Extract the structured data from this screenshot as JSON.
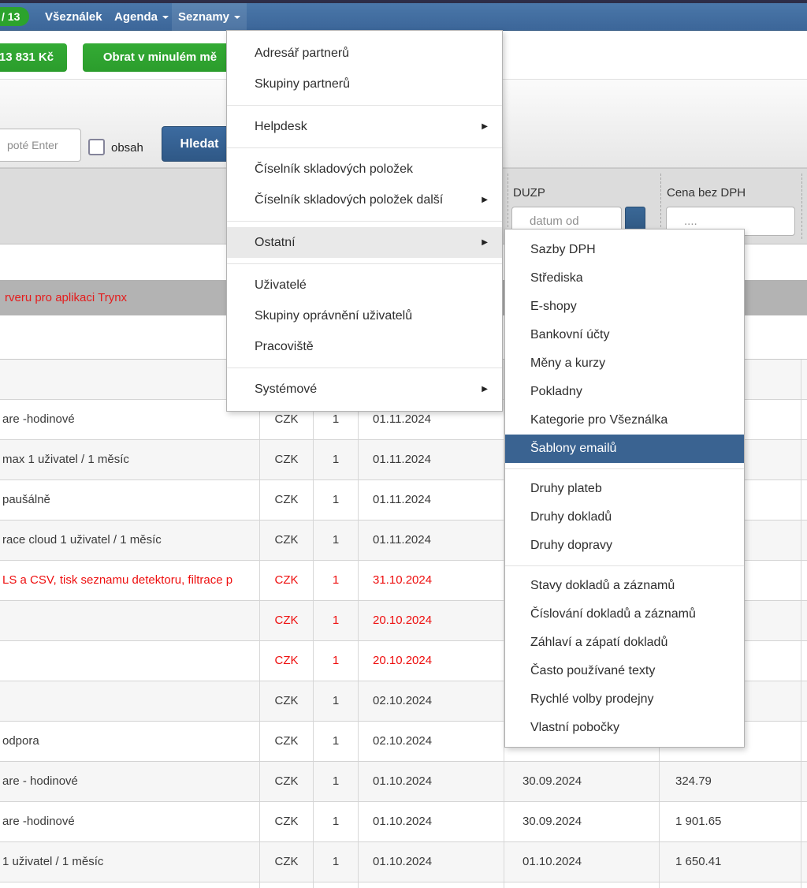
{
  "navbar": {
    "badge": "/ 13",
    "items": [
      {
        "label": "Všeználek",
        "caret": false,
        "open": false
      },
      {
        "label": "Agenda",
        "caret": true,
        "open": false
      },
      {
        "label": "Seznamy",
        "caret": true,
        "open": true
      }
    ]
  },
  "toolbar": {
    "buttons": [
      {
        "label": "13 831 Kč"
      },
      {
        "label": "Obrat v minulém mě"
      }
    ]
  },
  "search": {
    "placeholder": "poté Enter",
    "checkbox_label": "obsah",
    "checkbox_checked": false,
    "submit_label": "Hledat"
  },
  "filter_row": {
    "duzp": {
      "label": "DUZP",
      "placeholder": "datum od"
    },
    "price": {
      "label": "Cena bez DPH",
      "placeholder": "...."
    }
  },
  "notice_row": {
    "text": "rveru pro aplikaci Trynx"
  },
  "menu": {
    "sections": [
      {
        "items": [
          {
            "label": "Adresář partnerů"
          },
          {
            "label": "Skupiny partnerů"
          }
        ]
      },
      {
        "items": [
          {
            "label": "Helpdesk",
            "submenu": true
          }
        ]
      },
      {
        "items": [
          {
            "label": "Číselník skladových položek"
          },
          {
            "label": "Číselník skladových položek další",
            "submenu": true
          }
        ]
      },
      {
        "items": [
          {
            "label": "Ostatní",
            "submenu": true,
            "hover": true
          }
        ]
      },
      {
        "items": [
          {
            "label": "Uživatelé"
          },
          {
            "label": "Skupiny oprávnění uživatelů"
          },
          {
            "label": "Pracoviště"
          }
        ]
      },
      {
        "items": [
          {
            "label": "Systémové",
            "submenu": true
          }
        ]
      }
    ]
  },
  "submenu": {
    "sections": [
      {
        "items": [
          {
            "label": "Sazby DPH"
          },
          {
            "label": "Střediska"
          },
          {
            "label": "E-shopy"
          },
          {
            "label": "Bankovní účty"
          },
          {
            "label": "Měny a kurzy"
          },
          {
            "label": "Pokladny"
          },
          {
            "label": "Kategorie pro Všeználka"
          },
          {
            "label": "Šablony emailů",
            "selected": true
          }
        ]
      },
      {
        "items": [
          {
            "label": "Druhy plateb"
          },
          {
            "label": "Druhy dokladů"
          },
          {
            "label": "Druhy dopravy"
          }
        ]
      },
      {
        "items": [
          {
            "label": "Stavy dokladů a záznamů"
          },
          {
            "label": "Číslování dokladů a záznamů"
          },
          {
            "label": "Záhlaví a zápatí dokladů"
          },
          {
            "label": "Často používané texty"
          },
          {
            "label": "Rychlé volby prodejny"
          },
          {
            "label": "Vlastní pobočky"
          }
        ]
      }
    ]
  },
  "table": {
    "rows": [
      {
        "name": "",
        "currency": "",
        "qty": "",
        "date": "",
        "duzp": "",
        "price": "",
        "red": false
      },
      {
        "name": "are -hodinové",
        "currency": "CZK",
        "qty": "1",
        "date": "01.11.2024",
        "duzp": "",
        "price": "",
        "red": false
      },
      {
        "name": "max 1 uživatel / 1 měsíc",
        "currency": "CZK",
        "qty": "1",
        "date": "01.11.2024",
        "duzp": "",
        "price": "",
        "red": false
      },
      {
        "name": "paušálně",
        "currency": "CZK",
        "qty": "1",
        "date": "01.11.2024",
        "duzp": "",
        "price": "",
        "red": false
      },
      {
        "name": "race cloud 1 uživatel / 1 měsíc",
        "currency": "CZK",
        "qty": "1",
        "date": "01.11.2024",
        "duzp": "",
        "price": "",
        "red": false
      },
      {
        "name": "LS a CSV, tisk seznamu detektoru, filtrace p",
        "currency": "CZK",
        "qty": "1",
        "date": "31.10.2024",
        "duzp": "",
        "price": "",
        "red": true
      },
      {
        "name": "",
        "currency": "CZK",
        "qty": "1",
        "date": "20.10.2024",
        "duzp": "",
        "price": "",
        "red": true
      },
      {
        "name": "",
        "currency": "CZK",
        "qty": "1",
        "date": "20.10.2024",
        "duzp": "",
        "price": "",
        "red": true
      },
      {
        "name": "",
        "currency": "CZK",
        "qty": "1",
        "date": "02.10.2024",
        "duzp": "",
        "price": "",
        "red": false
      },
      {
        "name": "odpora",
        "currency": "CZK",
        "qty": "1",
        "date": "02.10.2024",
        "duzp": "",
        "price": "",
        "red": false
      },
      {
        "name": "are - hodinové",
        "currency": "CZK",
        "qty": "1",
        "date": "01.10.2024",
        "duzp": "30.09.2024",
        "price": "324.79",
        "red": false
      },
      {
        "name": "are -hodinové",
        "currency": "CZK",
        "qty": "1",
        "date": "01.10.2024",
        "duzp": "30.09.2024",
        "price": "1 901.65",
        "red": false
      },
      {
        "name": "1 uživatel / 1 měsíc",
        "currency": "CZK",
        "qty": "1",
        "date": "01.10.2024",
        "duzp": "01.10.2024",
        "price": "1 650.41",
        "red": false
      },
      {
        "name": "",
        "currency": "",
        "qty": "",
        "date": "",
        "duzp": "",
        "price": "",
        "red": false
      }
    ]
  },
  "colors": {
    "navbar_blue": "#3f6b9e",
    "accent_green": "#2ca32d",
    "button_blue": "#2f5886",
    "selected_menu_blue": "#3a6391",
    "selected_row_grey": "#b3b3b3",
    "alert_red": "#e41c1c"
  }
}
